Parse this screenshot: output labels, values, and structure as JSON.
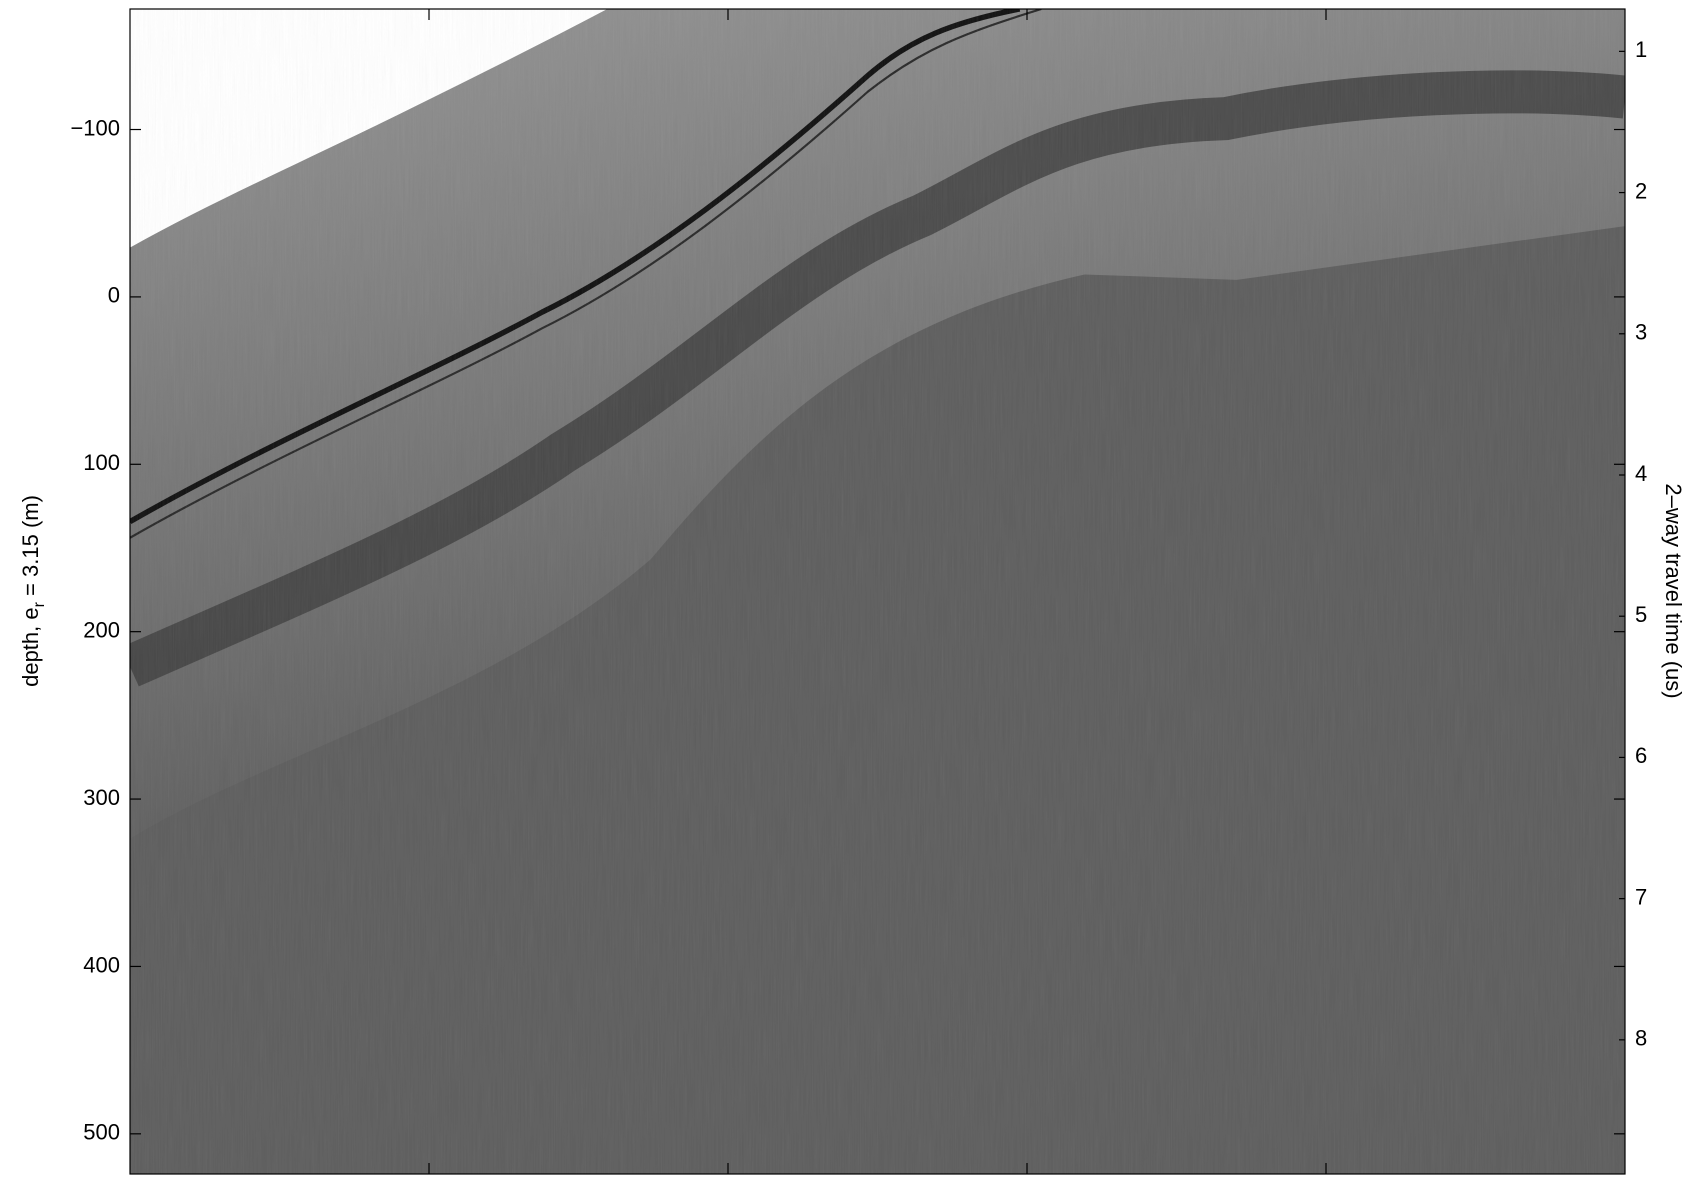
{
  "chart_data": {
    "type": "radargram",
    "y_label": {
      "text": "depth, e",
      "sub": "r",
      "rest": " = 3.15 (m)"
    },
    "y2_label": "2–way travel time (us)",
    "xlim": [
      0,
      5
    ],
    "xticks": [
      1,
      2,
      3,
      4
    ],
    "ylim": [
      -172,
      524
    ],
    "yticks": [
      {
        "value": -100,
        "label": "−100"
      },
      0,
      100,
      200,
      300,
      400,
      500
    ],
    "y2lim": [
      0.7,
      8.95
    ],
    "y2ticks": [
      1,
      2,
      3,
      4,
      5,
      6,
      7,
      8
    ],
    "colormap": "gray"
  }
}
